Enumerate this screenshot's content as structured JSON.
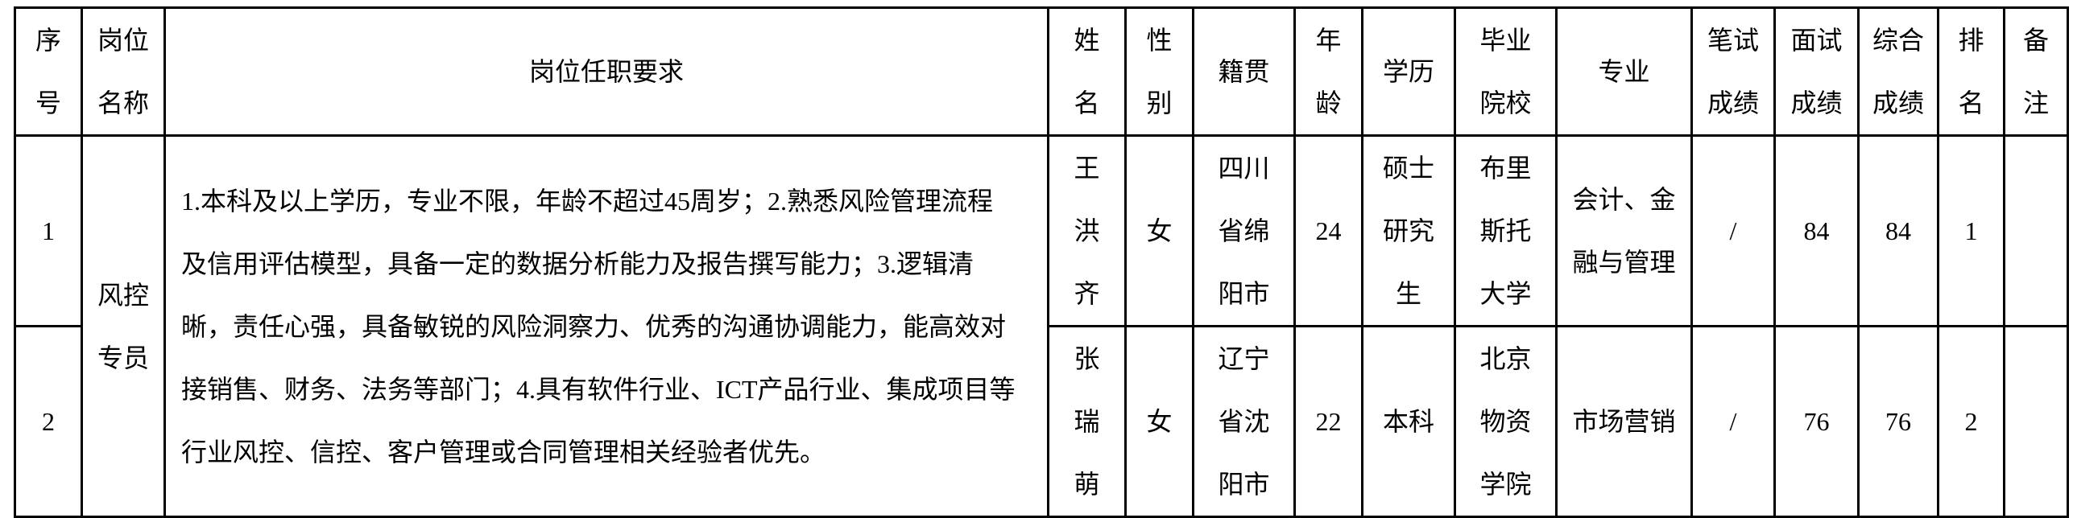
{
  "headers": [
    "序\n号",
    "岗位\n名称",
    "岗位任职要求",
    "姓\n名",
    "性\n别",
    "籍贯",
    "年\n龄",
    "学历",
    "毕业\n院校",
    "专业",
    "笔试\n成绩",
    "面试\n成绩",
    "综合\n成绩",
    "排\n名",
    "备\n注"
  ],
  "position": "风控\n专员",
  "requirements": "1.本科及以上学历，专业不限，年龄不超过45周岁；2.熟悉风险管理流程\n及信用评估模型，具备一定的数据分析能力及报告撰写能力；3.逻辑清\n晰，责任心强，具备敏锐的风险洞察力、优秀的沟通协调能力，能高效对\n接销售、财务、法务等部门；4.具有软件行业、ICT产品行业、集成项目等\n行业风控、信控、客户管理或合同管理相关经验者优先。",
  "rows": [
    {
      "no": "1",
      "name": "王\n洪\n齐",
      "gender": "女",
      "origin": "四川\n省绵\n阳市",
      "age": "24",
      "education": "硕士\n研究\n生",
      "school": "布里\n斯托\n大学",
      "major": "会计、金\n融与管理",
      "written": "/",
      "interview": "84",
      "total": "84",
      "rank": "1",
      "note": ""
    },
    {
      "no": "2",
      "name": "张\n瑞\n萌",
      "gender": "女",
      "origin": "辽宁\n省沈\n阳市",
      "age": "22",
      "education": "本科",
      "school": "北京\n物资\n学院",
      "major": "市场营销",
      "written": "/",
      "interview": "76",
      "total": "76",
      "rank": "2",
      "note": ""
    }
  ]
}
